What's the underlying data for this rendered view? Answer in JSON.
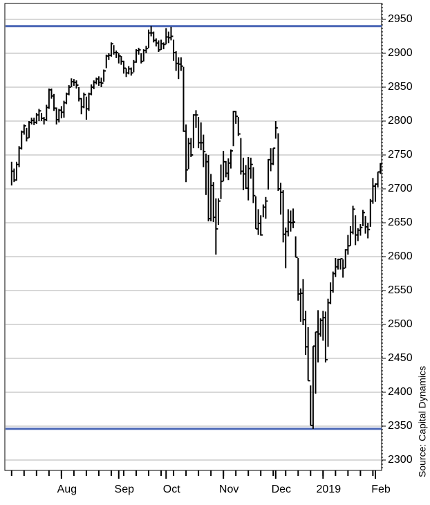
{
  "chart_data": {
    "type": "hlc",
    "source": "Source: Capital Dynamics",
    "categories": [
      null,
      null,
      null,
      null,
      null,
      null,
      null,
      null,
      null,
      null,
      null,
      null,
      null,
      null,
      null,
      null,
      null,
      null,
      null,
      null,
      "Aug",
      null,
      null,
      null,
      null,
      null,
      null,
      null,
      null,
      null,
      null,
      null,
      null,
      null,
      null,
      null,
      null,
      null,
      null,
      null,
      null,
      null,
      null,
      "Sep",
      null,
      null,
      null,
      null,
      null,
      null,
      null,
      null,
      null,
      null,
      null,
      null,
      null,
      null,
      null,
      null,
      null,
      null,
      "Oct",
      null,
      null,
      null,
      null,
      null,
      null,
      null,
      null,
      null,
      null,
      null,
      null,
      null,
      null,
      null,
      null,
      null,
      null,
      null,
      null,
      null,
      null,
      "Nov",
      null,
      null,
      null,
      null,
      null,
      null,
      null,
      null,
      null,
      null,
      null,
      null,
      null,
      null,
      null,
      null,
      null,
      null,
      null,
      null,
      "Dec",
      null,
      null,
      null,
      null,
      null,
      null,
      null,
      null,
      null,
      null,
      null,
      null,
      null,
      null,
      null,
      null,
      null,
      null,
      "2019",
      null,
      null,
      null,
      null,
      null,
      null,
      null,
      null,
      null,
      null,
      null,
      null,
      null,
      null,
      null,
      null,
      null,
      null,
      null,
      null,
      "Feb",
      null,
      null
    ],
    "high": [
      2740,
      2730,
      2740,
      2763,
      2786,
      2795,
      2790,
      2800,
      2805,
      2805,
      2812,
      2818,
      2812,
      2806,
      2824,
      2848,
      2848,
      2840,
      2820,
      2818,
      2822,
      2830,
      2842,
      2853,
      2863,
      2862,
      2860,
      2850,
      2834,
      2842,
      2836,
      2842,
      2854,
      2860,
      2864,
      2866,
      2864,
      2876,
      2898,
      2900,
      2916,
      2912,
      2904,
      2900,
      2896,
      2889,
      2878,
      2881,
      2879,
      2890,
      2906,
      2908,
      2900,
      2906,
      2911,
      2935,
      2940,
      2932,
      2922,
      2919,
      2920,
      2916,
      2937,
      2932,
      2939,
      2920,
      2903,
      2894,
      2894,
      2880,
      2795,
      2775,
      2775,
      2810,
      2816,
      2806,
      2798,
      2780,
      2752,
      2750,
      2722,
      2710,
      2686,
      2686,
      2736,
      2756,
      2741,
      2745,
      2758,
      2815,
      2815,
      2806,
      2775,
      2746,
      2735,
      2747,
      2746,
      2732,
      2689,
      2670,
      2661,
      2677,
      2688,
      2744,
      2760,
      2760,
      2800,
      2782,
      2709,
      2698,
      2643,
      2670,
      2668,
      2671,
      2630,
      2598,
      2553,
      2567,
      2520,
      2496,
      2410,
      2468,
      2489,
      2521,
      2509,
      2520,
      2519,
      2538,
      2562,
      2578,
      2598,
      2597,
      2597,
      2596,
      2611,
      2632,
      2645,
      2675,
      2661,
      2642,
      2648,
      2669,
      2660,
      2650,
      2685,
      2716,
      2708,
      2725,
      2738
    ],
    "low": [
      2705,
      2710,
      2712,
      2732,
      2758,
      2780,
      2770,
      2775,
      2795,
      2794,
      2796,
      2800,
      2800,
      2795,
      2800,
      2818,
      2833,
      2815,
      2795,
      2798,
      2804,
      2805,
      2825,
      2838,
      2850,
      2852,
      2848,
      2829,
      2810,
      2819,
      2802,
      2815,
      2838,
      2847,
      2854,
      2852,
      2850,
      2858,
      2878,
      2890,
      2895,
      2898,
      2893,
      2885,
      2883,
      2870,
      2865,
      2869,
      2867,
      2872,
      2886,
      2898,
      2885,
      2888,
      2900,
      2908,
      2925,
      2916,
      2910,
      2902,
      2905,
      2906,
      2913,
      2915,
      2919,
      2889,
      2874,
      2862,
      2874,
      2784,
      2710,
      2729,
      2747,
      2760,
      2790,
      2760,
      2757,
      2732,
      2691,
      2652,
      2652,
      2651,
      2603,
      2647,
      2685,
      2711,
      2717,
      2713,
      2730,
      2763,
      2796,
      2778,
      2721,
      2698,
      2700,
      2683,
      2715,
      2679,
      2641,
      2632,
      2631,
      2658,
      2656,
      2699,
      2726,
      2735,
      2774,
      2697,
      2662,
      2621,
      2583,
      2630,
      2637,
      2642,
      2599,
      2535,
      2504,
      2499,
      2455,
      2417,
      2351,
      2346,
      2398,
      2444,
      2482,
      2476,
      2444,
      2467,
      2530,
      2547,
      2570,
      2581,
      2581,
      2569,
      2583,
      2603,
      2616,
      2633,
      2617,
      2623,
      2631,
      2645,
      2634,
      2627,
      2644,
      2678,
      2681,
      2702,
      2722
    ],
    "close": [
      2726,
      2713,
      2736,
      2760,
      2784,
      2793,
      2775,
      2798,
      2801,
      2798,
      2809,
      2815,
      2804,
      2802,
      2820,
      2846,
      2837,
      2819,
      2802,
      2816,
      2813,
      2827,
      2840,
      2850,
      2858,
      2857,
      2853,
      2833,
      2821,
      2839,
      2818,
      2840,
      2850,
      2857,
      2862,
      2857,
      2856,
      2874,
      2896,
      2897,
      2914,
      2901,
      2901,
      2896,
      2888,
      2878,
      2871,
      2877,
      2871,
      2887,
      2904,
      2905,
      2888,
      2904,
      2907,
      2930,
      2930,
      2919,
      2915,
      2905,
      2914,
      2913,
      2924,
      2923,
      2925,
      2901,
      2885,
      2884,
      2881,
      2785,
      2728,
      2767,
      2750,
      2809,
      2809,
      2768,
      2768,
      2755,
      2740,
      2656,
      2705,
      2658,
      2641,
      2682,
      2711,
      2740,
      2723,
      2738,
      2756,
      2814,
      2807,
      2781,
      2726,
      2722,
      2701,
      2730,
      2736,
      2690,
      2641,
      2649,
      2632,
      2673,
      2682,
      2743,
      2737,
      2760,
      2790,
      2700,
      2695,
      2633,
      2637,
      2651,
      2650,
      2651,
      2599,
      2545,
      2546,
      2507,
      2467,
      2417,
      2351,
      2468,
      2489,
      2486,
      2506,
      2510,
      2448,
      2532,
      2550,
      2575,
      2585,
      2596,
      2597,
      2583,
      2610,
      2616,
      2636,
      2670,
      2632,
      2639,
      2643,
      2665,
      2644,
      2640,
      2682,
      2704,
      2707,
      2725,
      2737
    ],
    "color": "#000000",
    "hlines": [
      2940,
      2346
    ],
    "hline_color": "#4a66b6",
    "ylim": [
      2300,
      2950
    ],
    "yticks": [
      2300,
      2350,
      2400,
      2450,
      2500,
      2550,
      2600,
      2650,
      2700,
      2750,
      2800,
      2850,
      2900,
      2950
    ],
    "grid": true
  }
}
